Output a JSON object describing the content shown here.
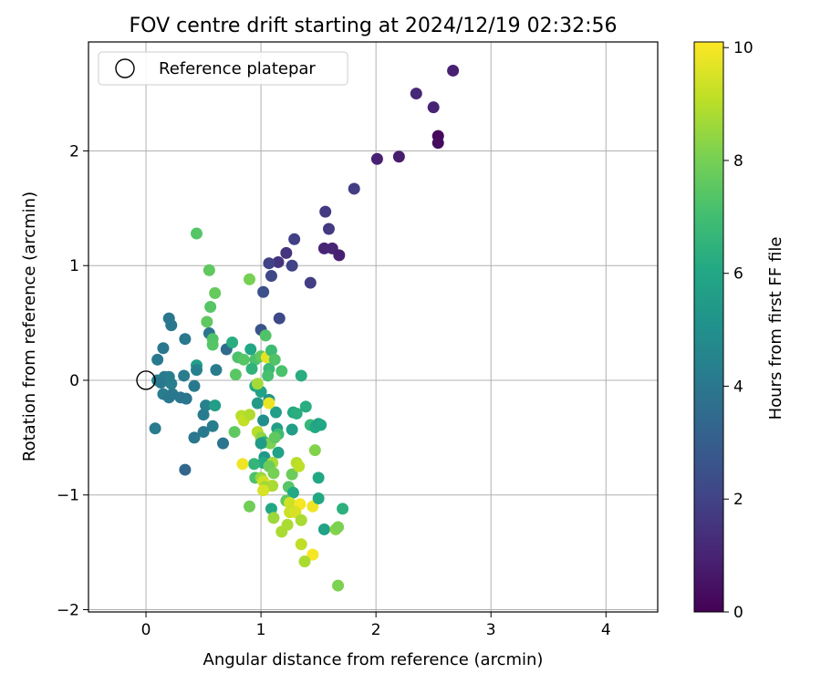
{
  "chart_data": {
    "type": "scatter",
    "title": "FOV centre drift starting at 2024/12/19 02:32:56",
    "xlabel": "Angular distance from reference (arcmin)",
    "ylabel": "Rotation from reference (arcmin)",
    "xlim": [
      -0.5,
      4.45
    ],
    "ylim": [
      -2.02,
      2.95
    ],
    "x_ticks": [
      0,
      1,
      2,
      3,
      4
    ],
    "y_ticks": [
      -2,
      -1,
      0,
      1,
      2
    ],
    "grid": true,
    "legend": {
      "placement": "top-left",
      "entries": [
        "Reference platepar"
      ]
    },
    "reference_point": {
      "x": 0,
      "y": 0
    },
    "colorbar": {
      "label": "Hours from first FF file",
      "range": [
        0,
        10.1
      ],
      "ticks": [
        0,
        2,
        4,
        6,
        8,
        10
      ],
      "colormap": "viridis"
    },
    "points": [
      {
        "x": 2.67,
        "y": 2.7,
        "h": 0.9
      },
      {
        "x": 2.35,
        "y": 2.5,
        "h": 1.1
      },
      {
        "x": 2.5,
        "y": 2.38,
        "h": 1.0
      },
      {
        "x": 2.54,
        "y": 2.13,
        "h": 0.2
      },
      {
        "x": 2.54,
        "y": 2.07,
        "h": 0.3
      },
      {
        "x": 2.01,
        "y": 1.93,
        "h": 0.9
      },
      {
        "x": 2.2,
        "y": 1.95,
        "h": 0.8
      },
      {
        "x": 1.81,
        "y": 1.67,
        "h": 1.8
      },
      {
        "x": 1.56,
        "y": 1.47,
        "h": 1.7
      },
      {
        "x": 1.59,
        "y": 1.32,
        "h": 1.7
      },
      {
        "x": 1.55,
        "y": 1.15,
        "h": 1.0
      },
      {
        "x": 1.62,
        "y": 1.15,
        "h": 1.0
      },
      {
        "x": 1.68,
        "y": 1.09,
        "h": 0.9
      },
      {
        "x": 1.29,
        "y": 1.23,
        "h": 1.9
      },
      {
        "x": 1.22,
        "y": 1.11,
        "h": 1.5
      },
      {
        "x": 1.15,
        "y": 1.03,
        "h": 1.5
      },
      {
        "x": 1.07,
        "y": 1.02,
        "h": 2.0
      },
      {
        "x": 1.27,
        "y": 1.0,
        "h": 2.0
      },
      {
        "x": 1.09,
        "y": 0.91,
        "h": 2.2
      },
      {
        "x": 1.43,
        "y": 0.85,
        "h": 1.8
      },
      {
        "x": 1.02,
        "y": 0.77,
        "h": 2.5
      },
      {
        "x": 1.16,
        "y": 0.54,
        "h": 2.2
      },
      {
        "x": 1.0,
        "y": 0.44,
        "h": 2.6
      },
      {
        "x": 0.44,
        "y": 1.28,
        "h": 7.4
      },
      {
        "x": 0.55,
        "y": 0.96,
        "h": 7.6
      },
      {
        "x": 0.6,
        "y": 0.76,
        "h": 7.7
      },
      {
        "x": 0.56,
        "y": 0.64,
        "h": 7.4
      },
      {
        "x": 0.9,
        "y": 0.88,
        "h": 8.0
      },
      {
        "x": 0.53,
        "y": 0.51,
        "h": 7.6
      },
      {
        "x": 0.2,
        "y": 0.54,
        "h": 3.9
      },
      {
        "x": 0.22,
        "y": 0.48,
        "h": 4.0
      },
      {
        "x": 0.55,
        "y": 0.41,
        "h": 3.9
      },
      {
        "x": 0.58,
        "y": 0.36,
        "h": 7.3
      },
      {
        "x": 0.34,
        "y": 0.36,
        "h": 4.0
      },
      {
        "x": 0.15,
        "y": 0.28,
        "h": 4.0
      },
      {
        "x": 0.58,
        "y": 0.31,
        "h": 7.4
      },
      {
        "x": 0.7,
        "y": 0.27,
        "h": 3.5
      },
      {
        "x": 0.75,
        "y": 0.33,
        "h": 6.3
      },
      {
        "x": 0.1,
        "y": 0.18,
        "h": 4.1
      },
      {
        "x": 0.44,
        "y": 0.13,
        "h": 5.6
      },
      {
        "x": 0.44,
        "y": 0.09,
        "h": 4.4
      },
      {
        "x": 0.61,
        "y": 0.09,
        "h": 4.2
      },
      {
        "x": 0.78,
        "y": 0.05,
        "h": 7.5
      },
      {
        "x": 0.8,
        "y": 0.2,
        "h": 7.2
      },
      {
        "x": 0.85,
        "y": 0.18,
        "h": 7.4
      },
      {
        "x": 0.33,
        "y": 0.04,
        "h": 4.2
      },
      {
        "x": 0.16,
        "y": 0.03,
        "h": 4.2
      },
      {
        "x": 0.2,
        "y": 0.03,
        "h": 4.3
      },
      {
        "x": 0.1,
        "y": 0.0,
        "h": 4.3
      },
      {
        "x": 0.13,
        "y": -0.02,
        "h": 4.1
      },
      {
        "x": 0.22,
        "y": -0.03,
        "h": 4.3
      },
      {
        "x": 0.42,
        "y": -0.05,
        "h": 4.1
      },
      {
        "x": 0.15,
        "y": -0.12,
        "h": 4.2
      },
      {
        "x": 0.2,
        "y": -0.15,
        "h": 4.0
      },
      {
        "x": 0.23,
        "y": -0.12,
        "h": 4.1
      },
      {
        "x": 0.3,
        "y": -0.15,
        "h": 4.0
      },
      {
        "x": 0.35,
        "y": -0.16,
        "h": 3.9
      },
      {
        "x": 0.08,
        "y": -0.42,
        "h": 4.2
      },
      {
        "x": 0.52,
        "y": -0.22,
        "h": 4.4
      },
      {
        "x": 0.6,
        "y": -0.22,
        "h": 5.6
      },
      {
        "x": 0.5,
        "y": -0.3,
        "h": 4.2
      },
      {
        "x": 0.5,
        "y": -0.45,
        "h": 4.1
      },
      {
        "x": 0.42,
        "y": -0.5,
        "h": 4.0
      },
      {
        "x": 0.58,
        "y": -0.4,
        "h": 4.3
      },
      {
        "x": 0.67,
        "y": -0.55,
        "h": 3.9
      },
      {
        "x": 0.34,
        "y": -0.78,
        "h": 3.3
      },
      {
        "x": 0.77,
        "y": -0.45,
        "h": 7.6
      },
      {
        "x": 0.91,
        "y": 0.27,
        "h": 6.0
      },
      {
        "x": 0.95,
        "y": 0.18,
        "h": 7.2
      },
      {
        "x": 1.0,
        "y": 0.21,
        "h": 7.6
      },
      {
        "x": 1.04,
        "y": 0.39,
        "h": 7.3
      },
      {
        "x": 1.05,
        "y": 0.2,
        "h": 9.7
      },
      {
        "x": 1.07,
        "y": 0.1,
        "h": 6.8
      },
      {
        "x": 1.09,
        "y": 0.26,
        "h": 6.9
      },
      {
        "x": 1.12,
        "y": 0.18,
        "h": 7.3
      },
      {
        "x": 1.18,
        "y": 0.08,
        "h": 7.2
      },
      {
        "x": 1.06,
        "y": 0.04,
        "h": 7.1
      },
      {
        "x": 0.92,
        "y": 0.1,
        "h": 6.5
      },
      {
        "x": 0.95,
        "y": -0.05,
        "h": 6.1
      },
      {
        "x": 1.0,
        "y": -0.1,
        "h": 5.8
      },
      {
        "x": 0.97,
        "y": -0.2,
        "h": 5.5
      },
      {
        "x": 1.07,
        "y": -0.17,
        "h": 5.2
      },
      {
        "x": 1.02,
        "y": -0.35,
        "h": 5.0
      },
      {
        "x": 1.13,
        "y": -0.28,
        "h": 5.6
      },
      {
        "x": 1.35,
        "y": 0.04,
        "h": 6.3
      },
      {
        "x": 0.97,
        "y": -0.03,
        "h": 8.7
      },
      {
        "x": 1.07,
        "y": -0.2,
        "h": 9.8
      },
      {
        "x": 1.14,
        "y": -0.42,
        "h": 5.6
      },
      {
        "x": 1.15,
        "y": -0.47,
        "h": 6.9
      },
      {
        "x": 1.28,
        "y": -0.28,
        "h": 6.1
      },
      {
        "x": 1.31,
        "y": -0.29,
        "h": 6.3
      },
      {
        "x": 1.27,
        "y": -0.43,
        "h": 5.6
      },
      {
        "x": 1.39,
        "y": -0.23,
        "h": 6.3
      },
      {
        "x": 1.43,
        "y": -0.39,
        "h": 6.7
      },
      {
        "x": 1.47,
        "y": -0.41,
        "h": 6.1
      },
      {
        "x": 1.5,
        "y": -0.38,
        "h": 5.6
      },
      {
        "x": 1.52,
        "y": -0.39,
        "h": 6.0
      },
      {
        "x": 1.47,
        "y": -0.61,
        "h": 8.2
      },
      {
        "x": 0.83,
        "y": -0.31,
        "h": 9.0
      },
      {
        "x": 0.85,
        "y": -0.35,
        "h": 9.2
      },
      {
        "x": 0.9,
        "y": -0.3,
        "h": 8.9
      },
      {
        "x": 0.97,
        "y": -0.45,
        "h": 9.0
      },
      {
        "x": 1.0,
        "y": -0.5,
        "h": 8.4
      },
      {
        "x": 1.03,
        "y": -0.54,
        "h": 6.3
      },
      {
        "x": 1.08,
        "y": -0.55,
        "h": 8.1
      },
      {
        "x": 1.0,
        "y": -0.55,
        "h": 5.5
      },
      {
        "x": 1.12,
        "y": -0.5,
        "h": 7.6
      },
      {
        "x": 1.15,
        "y": -0.63,
        "h": 5.8
      },
      {
        "x": 1.03,
        "y": -0.67,
        "h": 5.3
      },
      {
        "x": 1.02,
        "y": -0.72,
        "h": 6.1
      },
      {
        "x": 0.94,
        "y": -0.73,
        "h": 6.6
      },
      {
        "x": 0.84,
        "y": -0.73,
        "h": 9.9
      },
      {
        "x": 1.1,
        "y": -0.72,
        "h": 8.8
      },
      {
        "x": 1.07,
        "y": -0.75,
        "h": 7.8
      },
      {
        "x": 1.11,
        "y": -0.81,
        "h": 8.0
      },
      {
        "x": 0.95,
        "y": -0.85,
        "h": 7.2
      },
      {
        "x": 1.0,
        "y": -0.85,
        "h": 8.5
      },
      {
        "x": 1.02,
        "y": -0.88,
        "h": 9.3
      },
      {
        "x": 1.07,
        "y": -0.92,
        "h": 9.8
      },
      {
        "x": 1.04,
        "y": -0.93,
        "h": 8.6
      },
      {
        "x": 1.1,
        "y": -0.92,
        "h": 8.8
      },
      {
        "x": 1.02,
        "y": -0.96,
        "h": 9.5
      },
      {
        "x": 1.27,
        "y": -0.82,
        "h": 7.8
      },
      {
        "x": 1.31,
        "y": -0.72,
        "h": 9.0
      },
      {
        "x": 1.33,
        "y": -0.75,
        "h": 9.1
      },
      {
        "x": 1.5,
        "y": -0.85,
        "h": 6.0
      },
      {
        "x": 1.24,
        "y": -0.93,
        "h": 7.4
      },
      {
        "x": 1.28,
        "y": -0.98,
        "h": 6.1
      },
      {
        "x": 1.22,
        "y": -1.05,
        "h": 7.6
      },
      {
        "x": 1.25,
        "y": -1.07,
        "h": 9.4
      },
      {
        "x": 1.3,
        "y": -1.1,
        "h": 9.3
      },
      {
        "x": 1.34,
        "y": -1.08,
        "h": 10.0
      },
      {
        "x": 1.45,
        "y": -1.1,
        "h": 9.9
      },
      {
        "x": 1.5,
        "y": -1.03,
        "h": 6.0
      },
      {
        "x": 0.9,
        "y": -1.1,
        "h": 7.9
      },
      {
        "x": 1.09,
        "y": -1.12,
        "h": 6.0
      },
      {
        "x": 1.25,
        "y": -1.15,
        "h": 9.3
      },
      {
        "x": 1.3,
        "y": -1.15,
        "h": 9.5
      },
      {
        "x": 1.11,
        "y": -1.2,
        "h": 8.6
      },
      {
        "x": 1.23,
        "y": -1.26,
        "h": 8.8
      },
      {
        "x": 1.35,
        "y": -1.22,
        "h": 8.8
      },
      {
        "x": 1.18,
        "y": -1.32,
        "h": 8.8
      },
      {
        "x": 1.55,
        "y": -1.3,
        "h": 5.8
      },
      {
        "x": 1.65,
        "y": -1.3,
        "h": 8.3
      },
      {
        "x": 1.67,
        "y": -1.28,
        "h": 8.1
      },
      {
        "x": 1.71,
        "y": -1.12,
        "h": 6.4
      },
      {
        "x": 1.35,
        "y": -1.43,
        "h": 9.1
      },
      {
        "x": 1.45,
        "y": -1.52,
        "h": 10.0
      },
      {
        "x": 1.38,
        "y": -1.58,
        "h": 8.8
      },
      {
        "x": 1.67,
        "y": -1.79,
        "h": 8.1
      }
    ]
  }
}
